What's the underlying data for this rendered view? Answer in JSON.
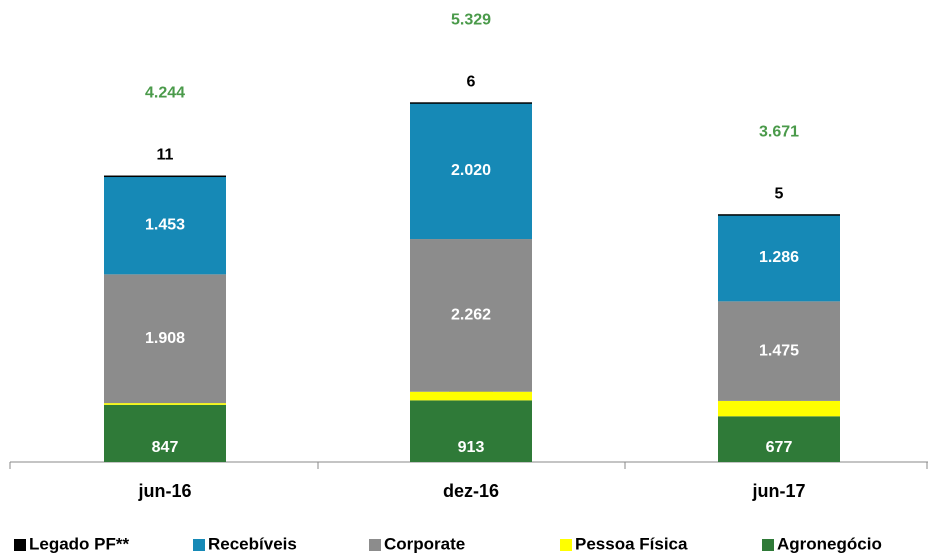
{
  "chart_data": {
    "type": "stacked_bar",
    "categories": [
      "jun-16",
      "dez-16",
      "jun-17"
    ],
    "series": [
      {
        "name": "Agronegócio",
        "color": "#2f7a38",
        "values": [
          847,
          913,
          677
        ],
        "value_labels": [
          "847",
          "913",
          "677"
        ]
      },
      {
        "name": "Pessoa Física",
        "color": "#ffff00",
        "values": [
          25,
          128,
          228
        ],
        "value_labels": [
          "25",
          "128",
          "228"
        ]
      },
      {
        "name": "Corporate",
        "color": "#8c8c8c",
        "values": [
          1908,
          2262,
          1475
        ],
        "value_labels": [
          "1.908",
          "2.262",
          "1.475"
        ]
      },
      {
        "name": "Recebíveis",
        "color": "#1689b6",
        "values": [
          1453,
          2020,
          1286
        ],
        "value_labels": [
          "1.453",
          "2.020",
          "1.286"
        ]
      },
      {
        "name": "Legado PF**",
        "color": "#000000",
        "values": [
          11,
          6,
          5
        ],
        "value_labels": [
          "11",
          "6",
          "5"
        ]
      }
    ],
    "totals": {
      "values": [
        4244,
        5329,
        3671
      ],
      "value_labels": [
        "4.244",
        "5.329",
        "3.671"
      ],
      "color": "#4a9a4a"
    },
    "ylim": [
      0,
      6400
    ]
  }
}
